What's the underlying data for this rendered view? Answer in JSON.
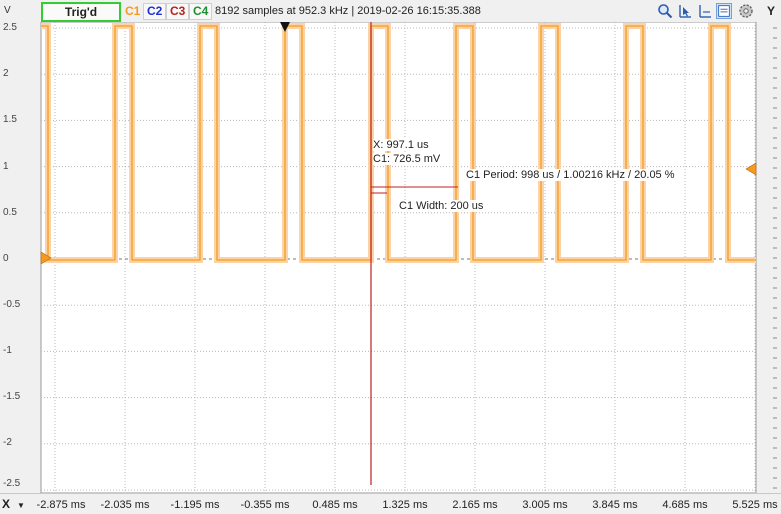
{
  "toolbar": {
    "y_unit": "V",
    "trigger_status": "Trig'd",
    "channels": [
      "C1",
      "C2",
      "C3",
      "C4"
    ],
    "acquisition_info": "8192 samples at 952.3 kHz | 2019-02-26 16:15:35.388",
    "y_button": "Y",
    "icons": [
      "zoom-icon",
      "cursor-pointer-icon",
      "cursor-measure-icon",
      "chart-mode-icon",
      "settings-icon"
    ]
  },
  "y_axis": {
    "ticks": [
      "2.5",
      "2",
      "1.5",
      "1",
      "0.5",
      "0",
      "-0.5",
      "-1",
      "-1.5",
      "-2",
      "-2.5"
    ]
  },
  "x_axis": {
    "button": "X",
    "ticks": [
      "-2.875 ms",
      "-2.035 ms",
      "-1.195 ms",
      "-0.355 ms",
      "0.485 ms",
      "1.325 ms",
      "2.165 ms",
      "3.005 ms",
      "3.845 ms",
      "4.685 ms",
      "5.525 ms"
    ]
  },
  "annotations": {
    "cursor_x": "X: 997.1 us",
    "cursor_c1": "C1: 726.5 mV",
    "period": "C1 Period: 998 us / 1.00216 kHz / 20.05 %",
    "width": "C1 Width: 200 us"
  },
  "colors": {
    "c1": "#f59a1e",
    "c1_glow": "#fbd3a6",
    "c2": "#1f2fd0",
    "c3": "#b5221f",
    "c4": "#1f8f2f",
    "trigger_border": "#33cc33",
    "cursor": "#c02020"
  }
}
